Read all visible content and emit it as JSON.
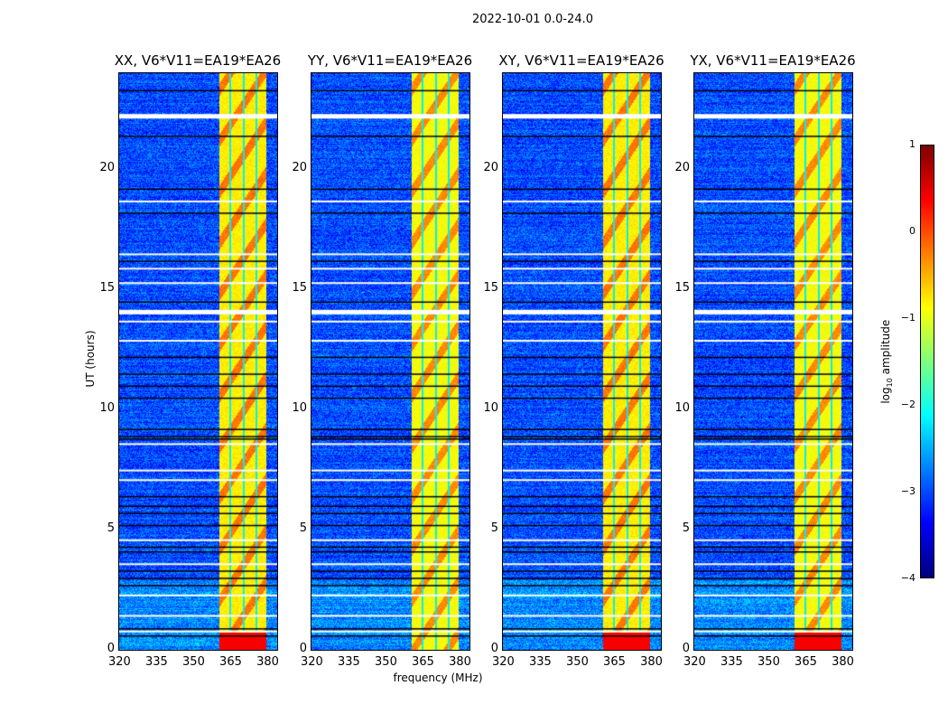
{
  "chart_data": {
    "type": "heatmap",
    "title": "2022-10-01 0.0-24.0",
    "panels": [
      {
        "title": "XX, V6*V11=EA19*EA26"
      },
      {
        "title": "YY, V6*V11=EA19*EA26"
      },
      {
        "title": "XY, V6*V11=EA19*EA26"
      },
      {
        "title": "YX, V6*V11=EA19*EA26"
      }
    ],
    "xlabel": "frequency (MHz)",
    "ylabel": "UT (hours)",
    "xlim": [
      320,
      384
    ],
    "ylim": [
      0,
      24
    ],
    "xticks": [
      "320",
      "335",
      "350",
      "365",
      "380"
    ],
    "yticks": [
      "0",
      "5",
      "10",
      "15",
      "20"
    ],
    "colorbar": {
      "label": "log",
      "label_sub": "10",
      "label_rest": " amplitude",
      "range": [
        -4,
        1
      ],
      "ticks": [
        "1",
        "0",
        "−1",
        "−2",
        "−3",
        "−4"
      ],
      "colormap": "jet"
    },
    "background_log_amplitude": -3,
    "rfi_band_mhz": [
      360.5,
      379.6
    ],
    "rfi_band_log_amplitude": -0.9,
    "rfi_band_gaps_mhz": [
      364.8,
      370.3,
      375.3
    ],
    "flagged_blank_hours": [
      22.3,
      18.7,
      16.5,
      15.9,
      15.3,
      14.15,
      13.7,
      12.9,
      8.6,
      7.5,
      7.1,
      4.6,
      3.6,
      2.3,
      1.45,
      0.8
    ],
    "flagged_black_hours": [
      23.3,
      21.4,
      19.2,
      18.2,
      16.2,
      14.5,
      12.2,
      11.5,
      11.0,
      10.5,
      9.2,
      8.9,
      8.8,
      6.4,
      6.0,
      5.7,
      5.2,
      4.3,
      4.1,
      3.3,
      3.0,
      2.7,
      0.9,
      0.6
    ]
  }
}
